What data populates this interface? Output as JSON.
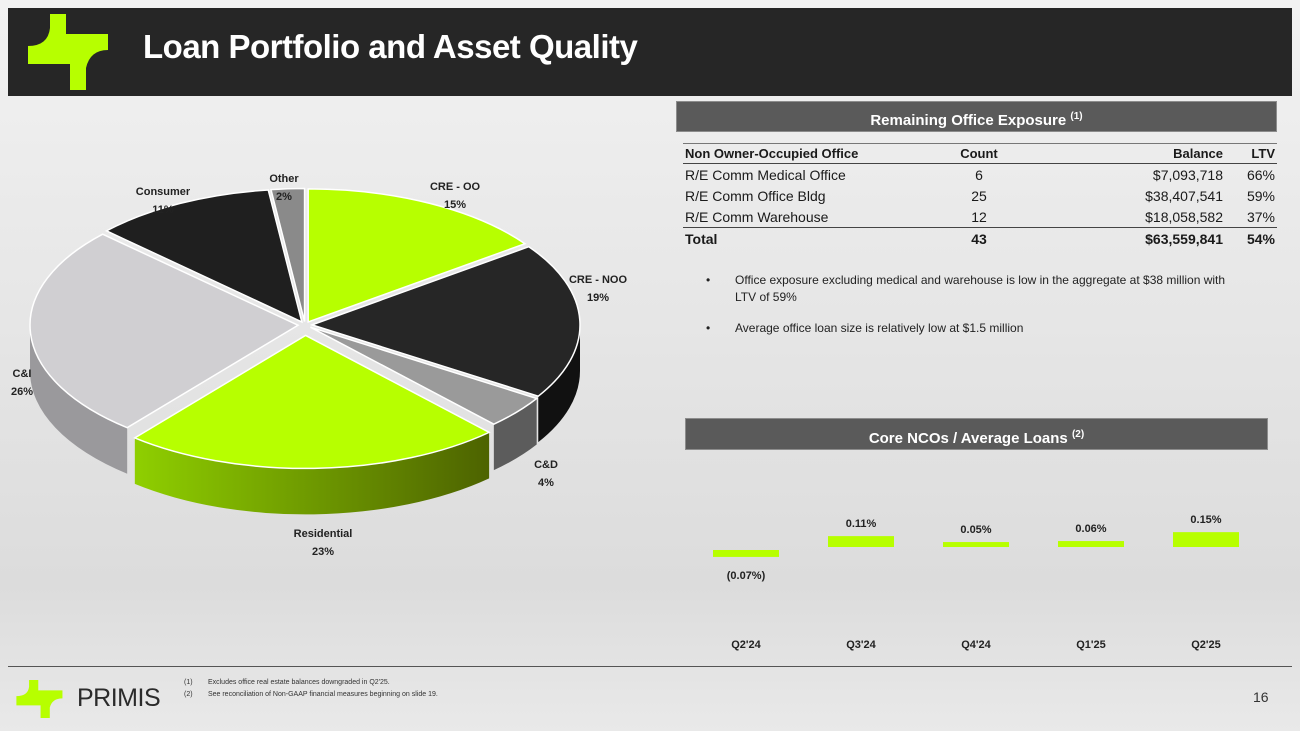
{
  "slide": {
    "title": "Loan Portfolio and Asset Quality",
    "page_number": "16"
  },
  "colors": {
    "lime": "#b7ff00",
    "dark": "#262626",
    "gray_bar": "#5a5a5a"
  },
  "office": {
    "heading": "Remaining Office Exposure",
    "heading_note": "(1)",
    "columns": [
      "Non Owner-Occupied Office",
      "Count",
      "Balance",
      "LTV"
    ],
    "rows": [
      [
        "R/E Comm Medical Office",
        "6",
        "$7,093,718",
        "66%"
      ],
      [
        "R/E Comm Office Bldg",
        "25",
        "$38,407,541",
        "59%"
      ],
      [
        "R/E Comm Warehouse",
        "12",
        "$18,058,582",
        "37%"
      ]
    ],
    "total": [
      "Total",
      "43",
      "$63,559,841",
      "54%"
    ],
    "bullets": [
      "Office exposure excluding medical and warehouse is low in the aggregate at $38 million with LTV of 59%",
      "Average office loan size is relatively low at $1.5 million"
    ],
    "bullet_glyph": "•"
  },
  "nco": {
    "heading": "Core NCOs / Average Loans",
    "heading_note": "(2)"
  },
  "footer": {
    "notes": [
      {
        "num": "(1)",
        "text": "Excludes office real estate balances downgraded in Q2'25."
      },
      {
        "num": "(2)",
        "text": "See reconciliation of Non-GAAP financial measures beginning on slide 19."
      }
    ],
    "brand": "PRIMIS"
  },
  "chart_data": [
    {
      "type": "pie",
      "title": "",
      "categories": [
        "CRE - OO",
        "CRE - NOO",
        "C&D",
        "Residential",
        "C&I",
        "Consumer",
        "Other"
      ],
      "values": [
        15,
        19,
        4,
        23,
        26,
        11,
        2
      ],
      "labels": [
        "15%",
        "19%",
        "4%",
        "23%",
        "26%",
        "11%",
        "2%"
      ],
      "colors": [
        "#b7ff00",
        "#262626",
        "#9a9a9a",
        "#b7ff00",
        "#d0cfd2",
        "#1f1f1f",
        "#8a8a8a"
      ],
      "side_colors": [
        "#7fb000",
        "#111111",
        "#5c5c5c",
        "#6e9a00",
        "#9a999c",
        "#0d0d0d",
        "#555555"
      ],
      "exploded": "Residential"
    },
    {
      "type": "bar",
      "title": "Core NCOs / Average Loans",
      "categories": [
        "Q2'24",
        "Q3'24",
        "Q4'24",
        "Q1'25",
        "Q2'25"
      ],
      "values": [
        -0.07,
        0.11,
        0.05,
        0.06,
        0.15
      ],
      "labels": [
        "(0.07%)",
        "0.11%",
        "0.05%",
        "0.06%",
        "0.15%"
      ],
      "unit": "%",
      "xlabel": "",
      "ylabel": "",
      "ylim": [
        -0.1,
        0.2
      ]
    }
  ]
}
